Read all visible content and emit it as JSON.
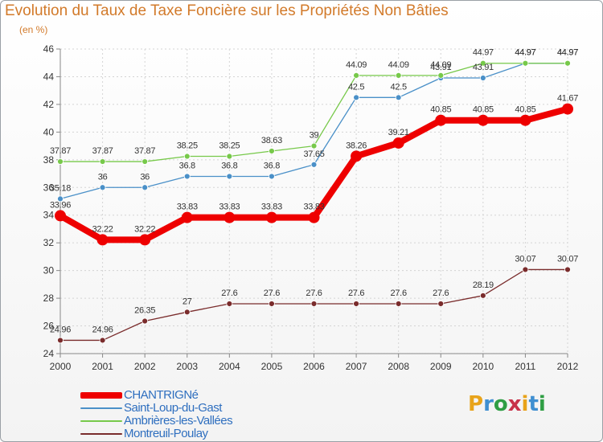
{
  "title": "Evolution du Taux de Taxe Foncière sur les Propriétés Non Bâties",
  "subtitle": "(en %)",
  "logo": {
    "text": "Proxiti",
    "colors": [
      "#e8a31a",
      "#3f8fd1",
      "#2f9e44",
      "#c8324a",
      "#e8a31a",
      "#3f8fd1",
      "#2f9e44"
    ]
  },
  "chart_data": {
    "type": "line",
    "x": [
      "2000",
      "2001",
      "2002",
      "2003",
      "2004",
      "2005",
      "2006",
      "2007",
      "2008",
      "2009",
      "2010",
      "2011",
      "2012"
    ],
    "ylim": [
      24,
      46
    ],
    "yticks": [
      24,
      26,
      28,
      30,
      32,
      34,
      36,
      38,
      40,
      42,
      44,
      46
    ],
    "grid": true,
    "legend_position": "bottom-left",
    "series": [
      {
        "name": "CHANTRIGNé",
        "color": "#ee0000",
        "emphasis": true,
        "values": [
          33.96,
          32.22,
          32.22,
          33.83,
          33.83,
          33.83,
          33.83,
          38.26,
          39.21,
          40.85,
          40.85,
          40.85,
          41.67
        ],
        "labels": [
          "33.96",
          "32.22",
          "32.22",
          "33.83",
          "33.83",
          "33.83",
          "33.83",
          "38.26",
          "39.21",
          "40.85",
          "40.85",
          "40.85",
          "41.67"
        ]
      },
      {
        "name": "Saint-Loup-du-Gast",
        "color": "#4a90c8",
        "emphasis": false,
        "values": [
          35.18,
          36,
          36,
          36.8,
          36.8,
          36.8,
          37.65,
          42.5,
          42.5,
          43.91,
          43.91,
          44.97,
          44.97
        ],
        "labels": [
          "35.18",
          "36",
          "36",
          "36.8",
          "36.8",
          "36.8",
          "37.65",
          "42.5",
          "42.5",
          "43.91",
          "43.91",
          "44.97",
          "44.97"
        ]
      },
      {
        "name": "Ambrières-les-Vallées",
        "color": "#77c94a",
        "emphasis": false,
        "values": [
          37.87,
          37.87,
          37.87,
          38.25,
          38.25,
          38.63,
          39,
          44.09,
          44.09,
          44.09,
          44.97,
          44.97,
          44.97
        ],
        "labels": [
          "37.87",
          "37.87",
          "37.87",
          "38.25",
          "38.25",
          "38.63",
          "39",
          "44.09",
          "44.09",
          "44.09",
          "44.97",
          "44.97",
          "44.97"
        ]
      },
      {
        "name": "Montreuil-Poulay",
        "color": "#7a2c2c",
        "emphasis": false,
        "values": [
          24.96,
          24.96,
          26.35,
          27,
          27.6,
          27.6,
          27.6,
          27.6,
          27.6,
          27.6,
          28.19,
          30.07,
          30.07
        ],
        "labels": [
          "24.96",
          "24.96",
          "26.35",
          "27",
          "27.6",
          "27.6",
          "27.6",
          "27.6",
          "27.6",
          "27.6",
          "28.19",
          "30.07",
          "30.07"
        ]
      }
    ]
  }
}
